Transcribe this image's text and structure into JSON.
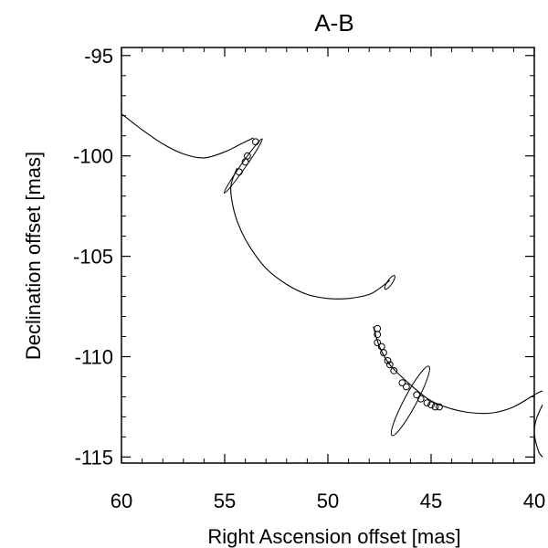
{
  "chart_data": {
    "type": "scatter",
    "title": "A-B",
    "xlabel": "Right Ascension offset [mas]",
    "ylabel": "Declination offset [mas]",
    "xlim": [
      60,
      40
    ],
    "ylim": [
      -115.3,
      -94.6
    ],
    "xticks": [
      60,
      55,
      50,
      45,
      40
    ],
    "yticks": [
      -95,
      -100,
      -105,
      -110,
      -115
    ],
    "xtick_labels": [
      "60",
      "55",
      "50",
      "45",
      "40"
    ],
    "ytick_labels": [
      "-95",
      "-100",
      "-105",
      "-110",
      "-115"
    ],
    "grid": false,
    "legend": "none",
    "orbit_segments": [
      {
        "name": "",
        "points": [
          [
            60.0,
            -97.9
          ],
          [
            59.0,
            -98.7
          ],
          [
            58.0,
            -99.4
          ],
          [
            57.0,
            -99.9
          ],
          [
            56.0,
            -100.1
          ],
          [
            55.0,
            -99.8
          ],
          [
            54.2,
            -99.4
          ],
          [
            53.6,
            -99.1
          ]
        ]
      },
      {
        "name": "",
        "points": [
          [
            54.4,
            -100.6
          ],
          [
            54.7,
            -101.5
          ],
          [
            54.6,
            -102.5
          ],
          [
            54.3,
            -103.5
          ],
          [
            53.8,
            -104.5
          ],
          [
            53.0,
            -105.6
          ],
          [
            52.0,
            -106.4
          ],
          [
            51.0,
            -106.9
          ],
          [
            50.0,
            -107.1
          ],
          [
            49.0,
            -107.1
          ],
          [
            48.0,
            -106.9
          ],
          [
            47.5,
            -106.6
          ],
          [
            47.0,
            -106.2
          ]
        ]
      },
      {
        "name": "",
        "points": [
          [
            47.8,
            -108.5
          ],
          [
            47.5,
            -109.5
          ],
          [
            47.0,
            -110.4
          ],
          [
            46.0,
            -111.4
          ],
          [
            45.0,
            -112.2
          ],
          [
            44.0,
            -112.6
          ],
          [
            43.0,
            -112.8
          ],
          [
            42.0,
            -112.8
          ],
          [
            41.0,
            -112.5
          ],
          [
            40.0,
            -111.9
          ],
          [
            39.6,
            -111.7
          ]
        ]
      },
      {
        "name": "",
        "points": [
          [
            39.6,
            -112.4
          ],
          [
            39.9,
            -113.1
          ],
          [
            40.0,
            -113.8
          ],
          [
            39.8,
            -114.7
          ],
          [
            39.6,
            -115.0
          ]
        ]
      }
    ],
    "observations": [
      {
        "x": 53.5,
        "y": -99.3
      },
      {
        "x": 53.9,
        "y": -100.0
      },
      {
        "x": 54.0,
        "y": -100.3
      },
      {
        "x": 54.3,
        "y": -100.8
      },
      {
        "x": 47.6,
        "y": -108.6
      },
      {
        "x": 47.6,
        "y": -108.9
      },
      {
        "x": 47.6,
        "y": -109.3
      },
      {
        "x": 47.4,
        "y": -109.5
      },
      {
        "x": 47.3,
        "y": -109.8
      },
      {
        "x": 47.1,
        "y": -110.2
      },
      {
        "x": 47.0,
        "y": -110.4
      },
      {
        "x": 46.8,
        "y": -110.7
      },
      {
        "x": 46.4,
        "y": -111.3
      },
      {
        "x": 46.2,
        "y": -111.5
      },
      {
        "x": 45.7,
        "y": -111.9
      },
      {
        "x": 45.5,
        "y": -112.1
      },
      {
        "x": 45.2,
        "y": -112.3
      },
      {
        "x": 45.0,
        "y": -112.4
      },
      {
        "x": 44.8,
        "y": -112.5
      },
      {
        "x": 44.6,
        "y": -112.5
      }
    ],
    "error_ellipses": [
      {
        "x": 54.1,
        "y": -100.5,
        "semi_major": 1.6,
        "semi_minor": 0.12,
        "angle_deg": -55
      },
      {
        "x": 47.0,
        "y": -106.3,
        "semi_major": 0.4,
        "semi_minor": 0.12,
        "angle_deg": -55
      },
      {
        "x": 46.0,
        "y": -112.2,
        "semi_major": 1.9,
        "semi_minor": 0.3,
        "angle_deg": -62
      }
    ]
  }
}
